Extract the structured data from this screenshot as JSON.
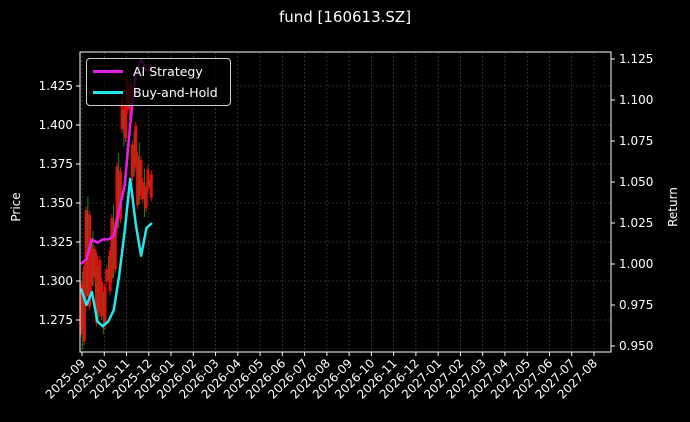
{
  "title": "fund [160613.SZ]",
  "legend": {
    "items": [
      {
        "label": "AI Strategy",
        "color": "#e81ee8"
      },
      {
        "label": "Buy-and-Hold",
        "color": "#22e8ee"
      }
    ]
  },
  "axes": {
    "left_label": "Price",
    "right_label": "Return",
    "left_ticks": [
      "1.275",
      "1.300",
      "1.325",
      "1.350",
      "1.375",
      "1.400",
      "1.425"
    ],
    "right_ticks": [
      "0.950",
      "0.975",
      "1.000",
      "1.025",
      "1.050",
      "1.075",
      "1.100",
      "1.125"
    ],
    "x_ticks": [
      "2025-09",
      "2025-10",
      "2025-11",
      "2025-12",
      "2026-01",
      "2026-02",
      "2026-03",
      "2026-04",
      "2026-05",
      "2026-06",
      "2026-07",
      "2026-08",
      "2026-09",
      "2026-10",
      "2026-11",
      "2026-12",
      "2027-01",
      "2027-02",
      "2027-03",
      "2027-04",
      "2027-05",
      "2027-06",
      "2027-07",
      "2027-08"
    ]
  },
  "chart_data": {
    "type": "line",
    "title": "fund [160613.SZ]",
    "xlabel": "",
    "ylabel": "Price",
    "y2label": "Return",
    "ylim": [
      1.258,
      1.448
    ],
    "y2lim": [
      0.946,
      1.129
    ],
    "grid": true,
    "legend_position": "upper left",
    "x": [
      "2025-09-01",
      "2025-09-08",
      "2025-09-15",
      "2025-09-22",
      "2025-09-29",
      "2025-10-06",
      "2025-10-13",
      "2025-10-20",
      "2025-10-27",
      "2025-11-03",
      "2025-11-10",
      "2025-11-17",
      "2025-11-24",
      "2025-12-01"
    ],
    "series": [
      {
        "name": "AI Strategy",
        "axis": "right",
        "color": "#e81ee8",
        "values": [
          1.0,
          1.003,
          1.015,
          1.013,
          1.015,
          1.015,
          1.017,
          1.033,
          1.048,
          1.085,
          1.115,
          1.125,
          1.118,
          1.12
        ]
      },
      {
        "name": "Buy-and-Hold",
        "axis": "right",
        "color": "#22e8ee",
        "values": [
          0.985,
          0.975,
          0.983,
          0.965,
          0.962,
          0.965,
          0.972,
          0.993,
          1.02,
          1.052,
          1.025,
          1.005,
          1.022,
          1.025
        ]
      },
      {
        "name": "Price Candles (up)",
        "axis": "left",
        "color": "#1a8a1a",
        "values": [
          1.3,
          1.345,
          1.32,
          1.31,
          1.29,
          1.31,
          1.34,
          1.37,
          1.41,
          1.42,
          1.39,
          1.38,
          1.36,
          1.365
        ]
      },
      {
        "name": "Price Candles (down)",
        "axis": "left",
        "color": "#e01010",
        "values": [
          1.265,
          1.29,
          1.3,
          1.28,
          1.275,
          1.3,
          1.305,
          1.34,
          1.395,
          1.41,
          1.37,
          1.355,
          1.35,
          1.36
        ]
      }
    ]
  }
}
